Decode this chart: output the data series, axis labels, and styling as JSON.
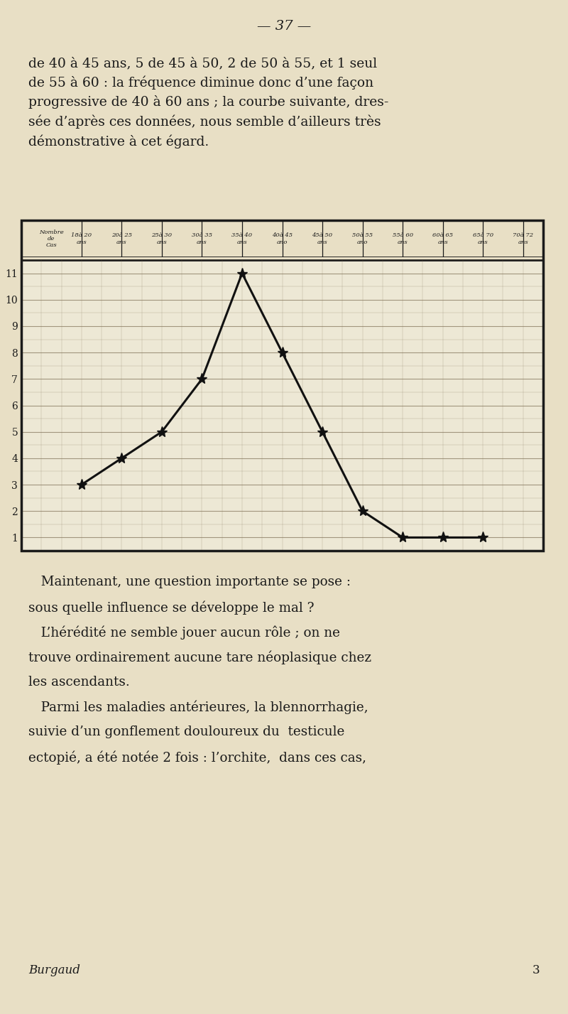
{
  "background_color": "#e8dfc5",
  "chart_bg_color": "#ede8d5",
  "border_color": "#1a1a1a",
  "line_color": "#111111",
  "grid_color": "#7a6a50",
  "marker_color": "#111111",
  "col_labels": [
    "Nombre\nde\nCas",
    "18à 20\nans",
    "20à 25\nans",
    "25à 30\nans",
    "30à 35\nans",
    "35à 40\nans",
    "40à 45\nano",
    "45à 50\nans",
    "50à 55\nano",
    "55à 60\nans",
    "60à 65\nans",
    "65à 70\nans",
    "70à 72\nans"
  ],
  "y_values": [
    3,
    4,
    5,
    7,
    11,
    8,
    5,
    2,
    1,
    1,
    1
  ],
  "x_positions": [
    0,
    1,
    2,
    3,
    4,
    5,
    6,
    7,
    8,
    9,
    10
  ],
  "y_min": 1,
  "y_max": 11,
  "page_number": "— 37 —"
}
